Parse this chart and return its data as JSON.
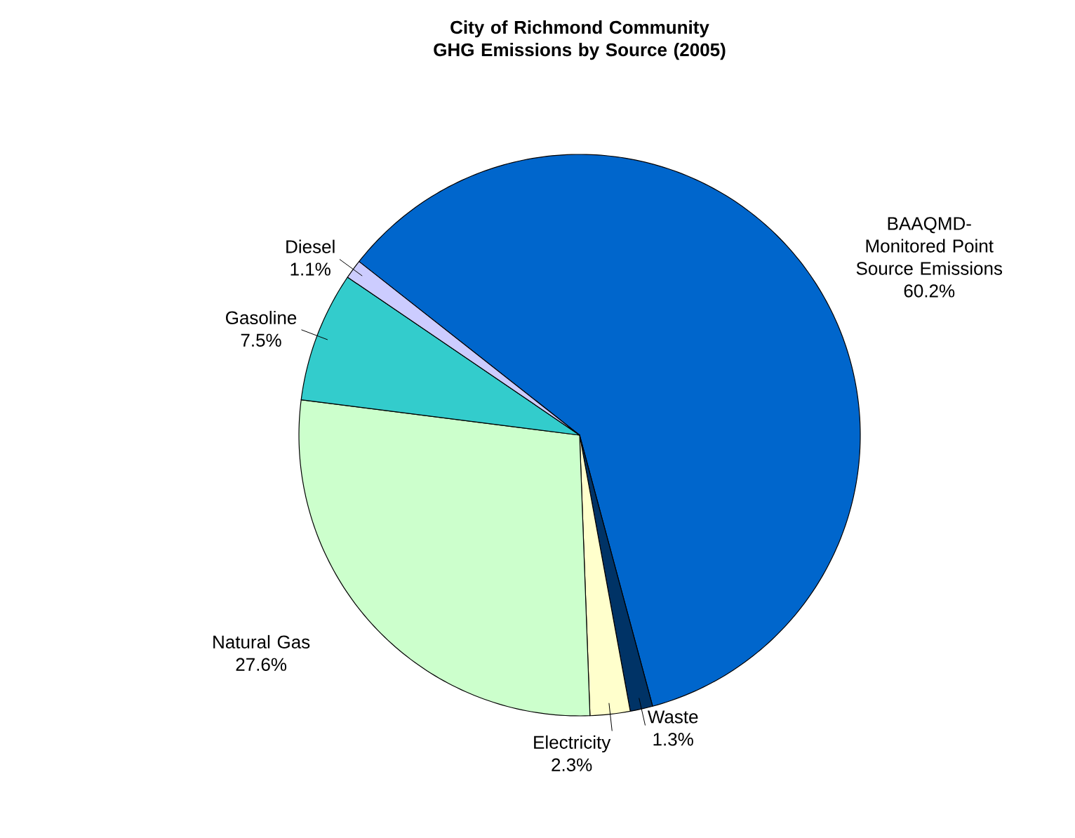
{
  "chart_data": {
    "type": "pie",
    "title": "City of Richmond Community GHG Emissions by Source (2005)",
    "categories": [
      "BAAQMD-Monitored Point Source Emissions",
      "Waste",
      "Electricity",
      "Natural Gas",
      "Gasoline",
      "Diesel"
    ],
    "values": [
      60.2,
      1.3,
      2.3,
      27.6,
      7.5,
      1.1
    ],
    "value_labels": [
      "60.2%",
      "1.3%",
      "2.3%",
      "27.6%",
      "7.5%",
      "1.1%"
    ],
    "colors": [
      "#0066cc",
      "#003366",
      "#ffffcc",
      "#ccffcc",
      "#33cccc",
      "#ccccff"
    ]
  }
}
